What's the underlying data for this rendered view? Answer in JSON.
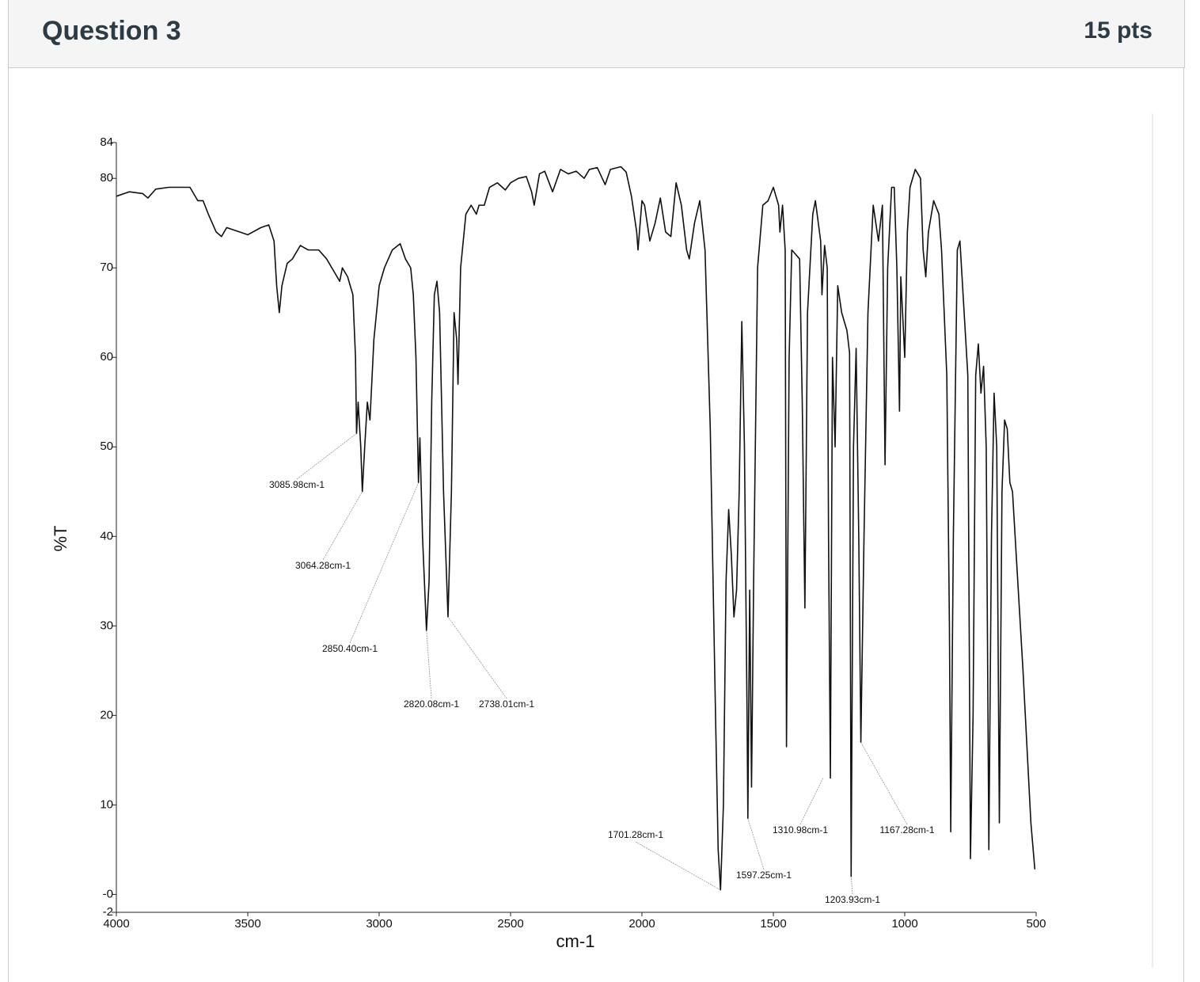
{
  "header": {
    "title": "Question 3",
    "points": "15 pts"
  },
  "chart_data": {
    "type": "line",
    "y_label": "%T",
    "x_label": "cm-1",
    "color": "#111111",
    "grid": false,
    "xlim": [
      4000,
      500
    ],
    "ylim": [
      -2,
      84
    ],
    "xticks": [
      4000,
      3500,
      3000,
      2500,
      2000,
      1500,
      1000,
      500
    ],
    "yticks": [
      -2,
      {
        "value": 0,
        "label": "-0"
      },
      10,
      20,
      30,
      40,
      50,
      60,
      70,
      80,
      84
    ],
    "x": [
      4000,
      3950,
      3900,
      3880,
      3850,
      3800,
      3720,
      3690,
      3670,
      3650,
      3620,
      3600,
      3580,
      3550,
      3500,
      3450,
      3420,
      3400,
      3390,
      3380,
      3370,
      3350,
      3330,
      3300,
      3270,
      3230,
      3200,
      3170,
      3150,
      3140,
      3120,
      3100,
      3090,
      3086,
      3080,
      3070,
      3064,
      3055,
      3045,
      3035,
      3020,
      3000,
      2980,
      2950,
      2920,
      2900,
      2880,
      2870,
      2860,
      2850.4,
      2845,
      2835,
      2820,
      2810,
      2800,
      2790,
      2780,
      2770,
      2755,
      2738,
      2725,
      2715,
      2705,
      2700,
      2690,
      2670,
      2650,
      2630,
      2620,
      2600,
      2580,
      2550,
      2520,
      2500,
      2470,
      2440,
      2420,
      2410,
      2390,
      2370,
      2340,
      2310,
      2280,
      2250,
      2220,
      2200,
      2170,
      2140,
      2120,
      2080,
      2060,
      2040,
      2020,
      2015,
      2000,
      1990,
      1970,
      1950,
      1930,
      1910,
      1890,
      1870,
      1850,
      1830,
      1820,
      1800,
      1780,
      1760,
      1740,
      1720,
      1710,
      1701,
      1690,
      1680,
      1670,
      1660,
      1650,
      1640,
      1630,
      1620,
      1610,
      1600,
      1597,
      1590,
      1583,
      1575,
      1560,
      1540,
      1520,
      1500,
      1480,
      1475,
      1465,
      1455,
      1450,
      1440,
      1430,
      1400,
      1390,
      1380,
      1370,
      1350,
      1340,
      1320,
      1315,
      1305,
      1295,
      1290,
      1283,
      1275,
      1265,
      1255,
      1240,
      1220,
      1210,
      1204,
      1195,
      1185,
      1175,
      1167,
      1155,
      1140,
      1120,
      1100,
      1085,
      1075,
      1065,
      1050,
      1040,
      1030,
      1020,
      1015,
      1005,
      1000,
      990,
      980,
      960,
      940,
      930,
      920,
      910,
      890,
      870,
      860,
      840,
      830,
      825,
      815,
      800,
      790,
      780,
      760,
      750,
      740,
      730,
      720,
      710,
      700,
      690,
      680,
      670,
      660,
      650,
      640,
      630,
      620,
      610,
      600,
      590,
      550,
      520,
      505
    ],
    "values": [
      78,
      78.5,
      78.3,
      77.8,
      78.8,
      79,
      79,
      77.5,
      77.5,
      76,
      74,
      73.5,
      74.5,
      74.2,
      73.7,
      74.5,
      74.8,
      73,
      68,
      65,
      68,
      70.5,
      71,
      72.5,
      72,
      72,
      71,
      69.5,
      68.5,
      70,
      69,
      67,
      60,
      51.5,
      55,
      50,
      45,
      50,
      55,
      53,
      62,
      68,
      70,
      72,
      72.7,
      71,
      70,
      67,
      60,
      46,
      51,
      40,
      29.5,
      35,
      55,
      67,
      68.5,
      65,
      45,
      31,
      45,
      65,
      62,
      57,
      70,
      76,
      77,
      76,
      77,
      77,
      79,
      79.5,
      78.7,
      79.5,
      80,
      80.2,
      78.5,
      77,
      80.5,
      80.8,
      78.5,
      81,
      80.5,
      80.8,
      80,
      81,
      81.2,
      79.3,
      81,
      81.3,
      80.7,
      78,
      74,
      72,
      77.5,
      77,
      73,
      75,
      77.8,
      74,
      73.5,
      79.5,
      77,
      72,
      71,
      75,
      77.5,
      72,
      52,
      20,
      5,
      0.5,
      10,
      35,
      43,
      38,
      31,
      34,
      45,
      64,
      50,
      20,
      8.5,
      34,
      12,
      35,
      70,
      77,
      77.5,
      79,
      77,
      74,
      77,
      72,
      16.5,
      60,
      72,
      71,
      55,
      32,
      65,
      76,
      77.5,
      73,
      67,
      72.5,
      70,
      40,
      13,
      60,
      50,
      68,
      65,
      63,
      60.5,
      2,
      50,
      61,
      40,
      17,
      40,
      65,
      77,
      73,
      77,
      48,
      70,
      79,
      79,
      70,
      54,
      69,
      63,
      60,
      74,
      79,
      81,
      80,
      72,
      69,
      74,
      77.5,
      76,
      72,
      58,
      30,
      7,
      40,
      72,
      73,
      68,
      58,
      4,
      20,
      58,
      61.5,
      56,
      59,
      50,
      5,
      40,
      56,
      50,
      8,
      45,
      53,
      52,
      46,
      45,
      25,
      8,
      2.8
    ],
    "annotations": [
      {
        "text": "3085.98cm-1",
        "x": 3085.98,
        "y": 51.5
      },
      {
        "text": "3064.28cm-1",
        "x": 3064.28,
        "y": 45
      },
      {
        "text": "2850.40cm-1",
        "x": 2850.4,
        "y": 46
      },
      {
        "text": "2820.08cm-1",
        "x": 2820.08,
        "y": 29.5
      },
      {
        "text": "2738.01cm-1",
        "x": 2738.01,
        "y": 31
      },
      {
        "text": "1701.28cm-1",
        "x": 1701.28,
        "y": 0.5
      },
      {
        "text": "1597.25cm-1",
        "x": 1597.25,
        "y": 8.5
      },
      {
        "text": "1310.98cm-1",
        "x": 1310.98,
        "y": 13
      },
      {
        "text": "1203.93cm-1",
        "x": 1203.93,
        "y": 2
      },
      {
        "text": "1167.28cm-1",
        "x": 1167.28,
        "y": 17
      }
    ]
  }
}
